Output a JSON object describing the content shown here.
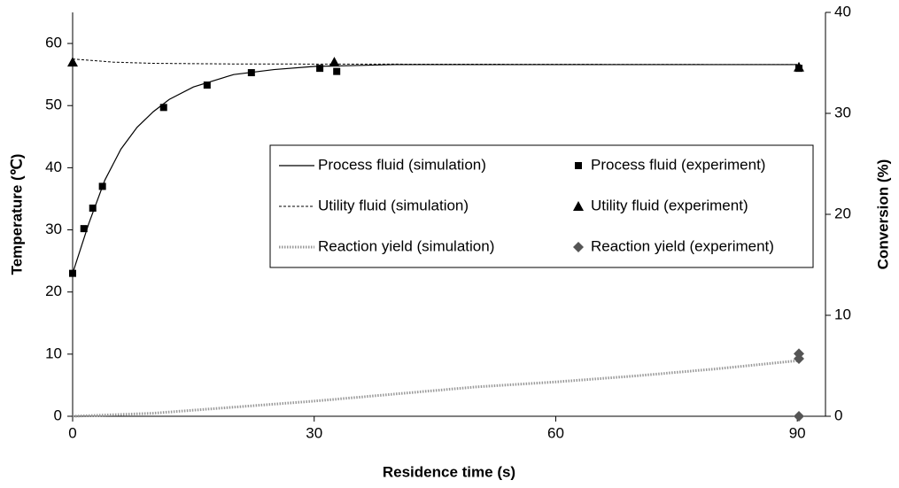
{
  "chart_data": {
    "type": "line",
    "xlabel": "Residence time (s)",
    "ylabel": "Temperature (℃)",
    "y2label": "Conversion (%)",
    "xlim": [
      0,
      93.5
    ],
    "xticks": [
      0,
      30,
      60,
      90
    ],
    "ylim": [
      0,
      65
    ],
    "yticks": [
      0,
      10,
      20,
      30,
      40,
      50,
      60
    ],
    "y2lim": [
      0,
      40
    ],
    "y2ticks": [
      0,
      10,
      20,
      30,
      40
    ],
    "series": [
      {
        "name": "Process fluid (simulation)",
        "color": "#000000",
        "style": "solid",
        "marker": "none",
        "x": [
          0,
          2,
          4,
          6,
          8,
          10,
          12,
          15,
          20,
          25,
          30,
          40,
          90
        ],
        "values": [
          23,
          31,
          38,
          43,
          46.5,
          49,
          51,
          53,
          55,
          55.8,
          56.3,
          56.6,
          56.6
        ]
      },
      {
        "name": "Process fluid (experiment)",
        "color": "#000000",
        "style": "none",
        "marker": "square",
        "x": [
          0,
          1.4,
          2.5,
          3.7,
          11.3,
          16.7,
          22.2,
          30.7,
          32.8,
          90.2
        ],
        "values": [
          23,
          30.2,
          33.5,
          37,
          49.7,
          53.3,
          55.3,
          56,
          55.5,
          56
        ]
      },
      {
        "name": "Utility fluid (simulation)",
        "color": "#000000",
        "style": "dashed",
        "marker": "none",
        "x": [
          0,
          5,
          10,
          20,
          90
        ],
        "values": [
          57.5,
          57,
          56.8,
          56.7,
          56.6
        ]
      },
      {
        "name": "Utility fluid (experiment)",
        "color": "#000000",
        "style": "none",
        "marker": "triangle",
        "x": [
          0,
          32.5,
          90.2
        ],
        "values": [
          57,
          57,
          56.2
        ]
      },
      {
        "name": "Reaction yield (simulation)",
        "color": "#999999",
        "style": "dotted",
        "marker": "none",
        "axis": "y2",
        "x": [
          0,
          10,
          20,
          30,
          40,
          50,
          60,
          70,
          80,
          90
        ],
        "values": [
          0,
          0.3,
          0.9,
          1.5,
          2.2,
          2.9,
          3.4,
          4.0,
          4.7,
          5.5
        ]
      },
      {
        "name": "Reaction yield (experiment)",
        "color": "#555555",
        "style": "none",
        "marker": "diamond",
        "axis": "y2",
        "x": [
          90.2,
          90.2,
          90.2
        ],
        "values": [
          6.2,
          5.7,
          0
        ]
      }
    ]
  }
}
